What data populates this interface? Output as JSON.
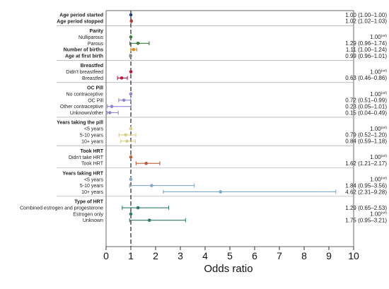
{
  "chart_data": {
    "type": "forest",
    "xlabel": "Odds ratio",
    "xlim": [
      0,
      10
    ],
    "x_ticks": [
      "0",
      "1",
      "2",
      "3",
      "4",
      "5",
      "6",
      "7",
      "8",
      "9",
      "10"
    ],
    "reference_line": 1,
    "groups": [
      {
        "header": "",
        "rows": [
          {
            "label": "Age period started",
            "bold": true,
            "or": 1.0,
            "lo": 1.0,
            "hi": 1.0,
            "text": "1.00 (1.00–1.00)",
            "ref": false,
            "color": "#1f3f87"
          },
          {
            "label": "Age period stopped",
            "bold": true,
            "or": 1.02,
            "lo": 1.02,
            "hi": 1.03,
            "text": "1.02 (1.02–1.03)",
            "ref": false,
            "color": "#b23a3a"
          }
        ]
      },
      {
        "header": "Parity",
        "rows": [
          {
            "label": "Nulliparous",
            "bold": false,
            "or": 1.0,
            "lo": 1.0,
            "hi": 1.0,
            "text": "1.00",
            "ref": true,
            "color": "#3c7d3c"
          },
          {
            "label": "Parous",
            "bold": false,
            "or": 1.29,
            "lo": 0.96,
            "hi": 1.74,
            "text": "1.29 (0.96–1.74)",
            "ref": false,
            "color": "#3c7d3c"
          },
          {
            "label": "Number of births",
            "bold": true,
            "or": 1.11,
            "lo": 1.0,
            "hi": 1.24,
            "text": "1.11 (1.00–1.24)",
            "ref": false,
            "color": "#e08a1a"
          },
          {
            "label": "Age at first birth",
            "bold": true,
            "or": 0.99,
            "lo": 0.96,
            "hi": 1.01,
            "text": "0.99 (0.96–1.01)",
            "ref": false,
            "color": "#8a8a8a"
          }
        ]
      },
      {
        "header": "Breastfed",
        "rows": [
          {
            "label": "Didn't breastfeed",
            "bold": false,
            "or": 1.0,
            "lo": 1.0,
            "hi": 1.0,
            "text": "1.00",
            "ref": true,
            "color": "#c0143c"
          },
          {
            "label": "Breastfed",
            "bold": false,
            "or": 0.63,
            "lo": 0.46,
            "hi": 0.86,
            "text": "0.63 (0.46–0.86)",
            "ref": false,
            "color": "#c0143c"
          }
        ]
      },
      {
        "header": "OC Pill",
        "rows": [
          {
            "label": "No contraceptive",
            "bold": false,
            "or": 1.0,
            "lo": 1.0,
            "hi": 1.0,
            "text": "1.00",
            "ref": true,
            "color": "#8a86d6"
          },
          {
            "label": "OC Pill",
            "bold": false,
            "or": 0.72,
            "lo": 0.51,
            "hi": 0.99,
            "text": "0.72 (0.51–0.99)",
            "ref": false,
            "color": "#8a86d6"
          },
          {
            "label": "Other contraceptive",
            "bold": false,
            "or": 0.23,
            "lo": 0.05,
            "hi": 1.01,
            "text": "0.23 (0.05–1.01)",
            "ref": false,
            "color": "#8a86d6"
          },
          {
            "label": "Unknown/other",
            "bold": false,
            "or": 0.15,
            "lo": 0.04,
            "hi": 0.49,
            "text": "0.15 (0.04–0.49)",
            "ref": false,
            "color": "#8a86d6"
          }
        ]
      },
      {
        "header": "Years taking the pill",
        "rows": [
          {
            "label": "<5 years",
            "bold": false,
            "or": 1.0,
            "lo": 1.0,
            "hi": 1.0,
            "text": "1.00",
            "ref": true,
            "color": "#d8d08a"
          },
          {
            "label": "5-10 years",
            "bold": false,
            "or": 0.79,
            "lo": 0.52,
            "hi": 1.2,
            "text": "0.79 (0.52–1.20)",
            "ref": false,
            "color": "#d8d08a"
          },
          {
            "label": "10+ years",
            "bold": false,
            "or": 0.84,
            "lo": 0.59,
            "hi": 1.18,
            "text": "0.84 (0.59–1.18)",
            "ref": false,
            "color": "#d8d08a"
          }
        ]
      },
      {
        "header": "Took HRT",
        "rows": [
          {
            "label": "Didn't take HRT",
            "bold": false,
            "or": 1.0,
            "lo": 1.0,
            "hi": 1.0,
            "text": "1.00",
            "ref": true,
            "color": "#b8603a"
          },
          {
            "label": "Took HRT",
            "bold": false,
            "or": 1.62,
            "lo": 1.21,
            "hi": 2.17,
            "text": "1.62 (1.21–2.17)",
            "ref": false,
            "color": "#b8603a"
          }
        ]
      },
      {
        "header": "Years taking HRT",
        "rows": [
          {
            "label": "<5 years",
            "bold": false,
            "or": 1.0,
            "lo": 1.0,
            "hi": 1.0,
            "text": "1.00",
            "ref": true,
            "color": "#7faac4"
          },
          {
            "label": "5-10 years",
            "bold": false,
            "or": 1.84,
            "lo": 0.95,
            "hi": 3.56,
            "text": "1.84 (0.95–3.56)",
            "ref": false,
            "color": "#7faac4"
          },
          {
            "label": "10+ years",
            "bold": false,
            "or": 4.62,
            "lo": 2.31,
            "hi": 9.28,
            "text": "4.62 (2.31–9.28)",
            "ref": false,
            "color": "#7faac4"
          }
        ]
      },
      {
        "header": "Type of HRT",
        "rows": [
          {
            "label": "Combined estrogen and progesterone",
            "bold": false,
            "or": 1.29,
            "lo": 0.65,
            "hi": 2.53,
            "text": "1.29 (0.65–2.53)",
            "ref": false,
            "color": "#2f7a6a"
          },
          {
            "label": "Estrogen only",
            "bold": false,
            "or": 1.0,
            "lo": 1.0,
            "hi": 1.0,
            "text": "1.00",
            "ref": true,
            "color": "#2f7a6a"
          },
          {
            "label": "Unknown",
            "bold": false,
            "or": 1.75,
            "lo": 0.95,
            "hi": 3.21,
            "text": "1.75 (0.95–3.21)",
            "ref": false,
            "color": "#2f7a6a"
          }
        ]
      }
    ],
    "ref_superscript": "(ref)"
  }
}
